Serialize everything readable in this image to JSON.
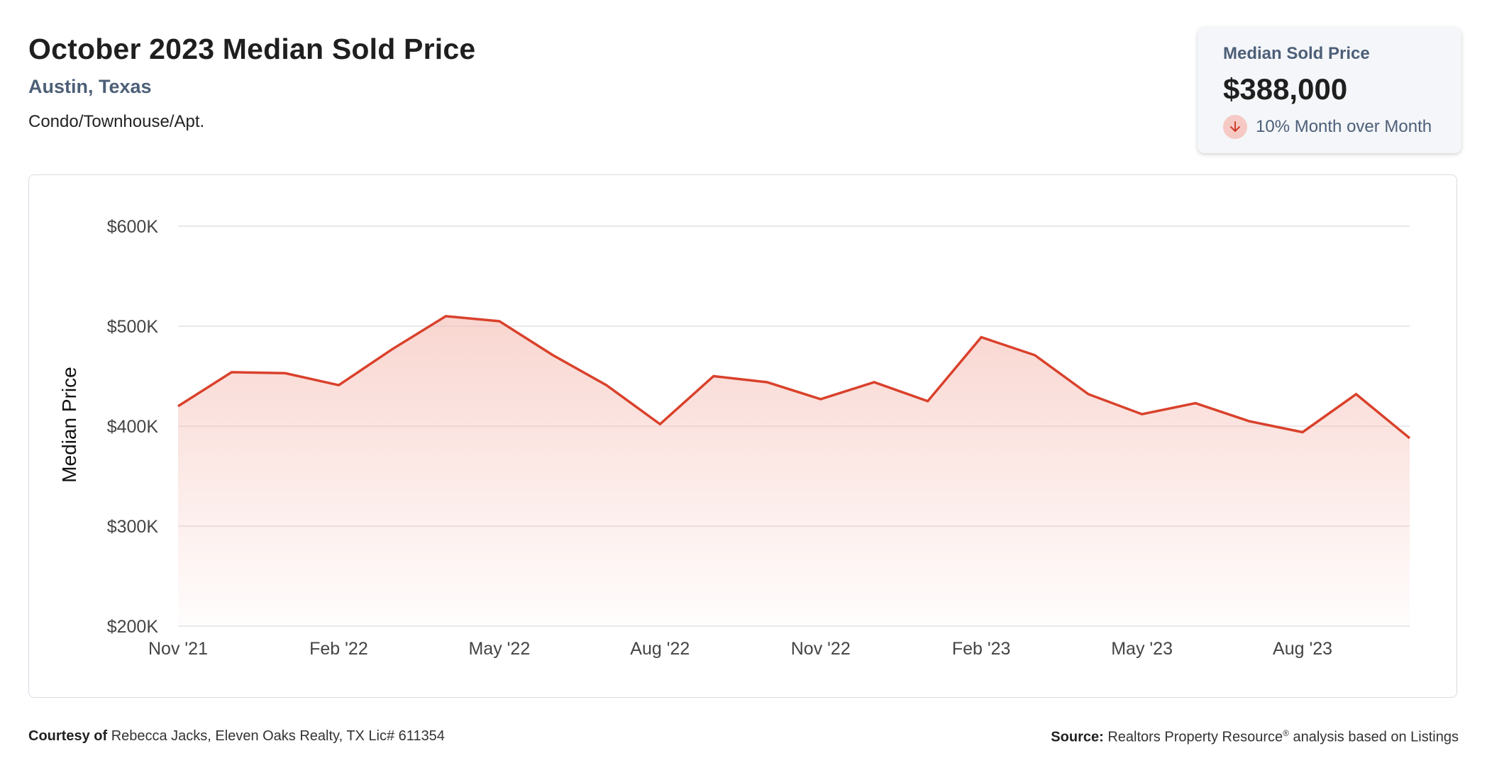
{
  "header": {
    "title": "October 2023 Median Sold Price",
    "location": "Austin, Texas",
    "property_type": "Condo/Townhouse/Apt."
  },
  "kpi": {
    "label": "Median Sold Price",
    "value": "$388,000",
    "change": "10% Month over Month",
    "change_icon": "arrow-down-icon",
    "change_color": "#d03a2a"
  },
  "footer": {
    "courtesy_label": "Courtesy of",
    "courtesy_text": "Rebecca Jacks, Eleven Oaks Realty, TX Lic# 611354",
    "source_label": "Source:",
    "source_text_1": "Realtors Property Resource",
    "source_sup": "®",
    "source_text_2": "analysis based on Listings"
  },
  "chart_data": {
    "type": "area",
    "ylabel": "Median Price",
    "ylim": [
      200000,
      600000
    ],
    "yticks": [
      200000,
      300000,
      400000,
      500000,
      600000
    ],
    "ytick_labels": [
      "$200K",
      "$300K",
      "$400K",
      "$500K",
      "$600K"
    ],
    "xtick_labels": [
      "Nov '21",
      "Feb '22",
      "May '22",
      "Aug '22",
      "Nov '22",
      "Feb '23",
      "May '23",
      "Aug '23"
    ],
    "xtick_indices": [
      0,
      3,
      6,
      9,
      12,
      15,
      18,
      21
    ],
    "grid": true,
    "line_color": "#d9412b",
    "fill_color": "#f4b4aa",
    "x": [
      "2021-11",
      "2021-12",
      "2022-01",
      "2022-02",
      "2022-03",
      "2022-04",
      "2022-05",
      "2022-06",
      "2022-07",
      "2022-08",
      "2022-09",
      "2022-10",
      "2022-11",
      "2022-12",
      "2023-01",
      "2023-02",
      "2023-03",
      "2023-04",
      "2023-05",
      "2023-06",
      "2023-07",
      "2023-08",
      "2023-09",
      "2023-10"
    ],
    "values": [
      420000,
      454000,
      453000,
      441000,
      477000,
      510000,
      505000,
      471000,
      441000,
      402000,
      450000,
      444000,
      427000,
      444000,
      425000,
      489000,
      471000,
      432000,
      412000,
      423000,
      405000,
      394000,
      432000,
      388000
    ]
  }
}
